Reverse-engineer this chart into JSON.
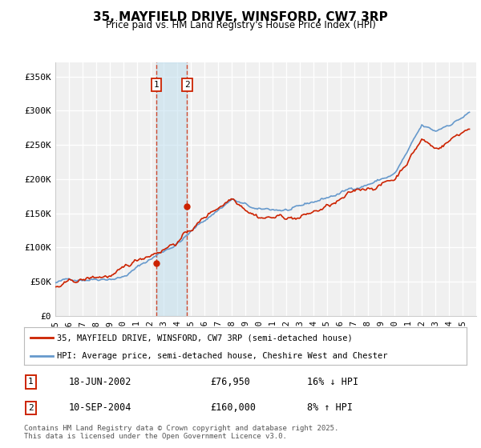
{
  "title": "35, MAYFIELD DRIVE, WINSFORD, CW7 3RP",
  "subtitle": "Price paid vs. HM Land Registry's House Price Index (HPI)",
  "ylim": [
    0,
    370000
  ],
  "yticks": [
    0,
    50000,
    100000,
    150000,
    200000,
    250000,
    300000,
    350000
  ],
  "ytick_labels": [
    "£0",
    "£50K",
    "£100K",
    "£150K",
    "£200K",
    "£250K",
    "£300K",
    "£350K"
  ],
  "background_color": "#ffffff",
  "plot_background": "#f0f0f0",
  "grid_color": "#ffffff",
  "hpi_color": "#6699cc",
  "price_color": "#cc2200",
  "sale1_x": 2002.46,
  "sale1_y": 76950,
  "sale2_x": 2004.71,
  "sale2_y": 160000,
  "sale1_date": "18-JUN-2002",
  "sale1_price": "£76,950",
  "sale1_hpi": "16% ↓ HPI",
  "sale2_date": "10-SEP-2004",
  "sale2_price": "£160,000",
  "sale2_hpi": "8% ↑ HPI",
  "legend_line1": "35, MAYFIELD DRIVE, WINSFORD, CW7 3RP (semi-detached house)",
  "legend_line2": "HPI: Average price, semi-detached house, Cheshire West and Chester",
  "footer": "Contains HM Land Registry data © Crown copyright and database right 2025.\nThis data is licensed under the Open Government Licence v3.0.",
  "xmin": 1995,
  "xmax": 2026
}
